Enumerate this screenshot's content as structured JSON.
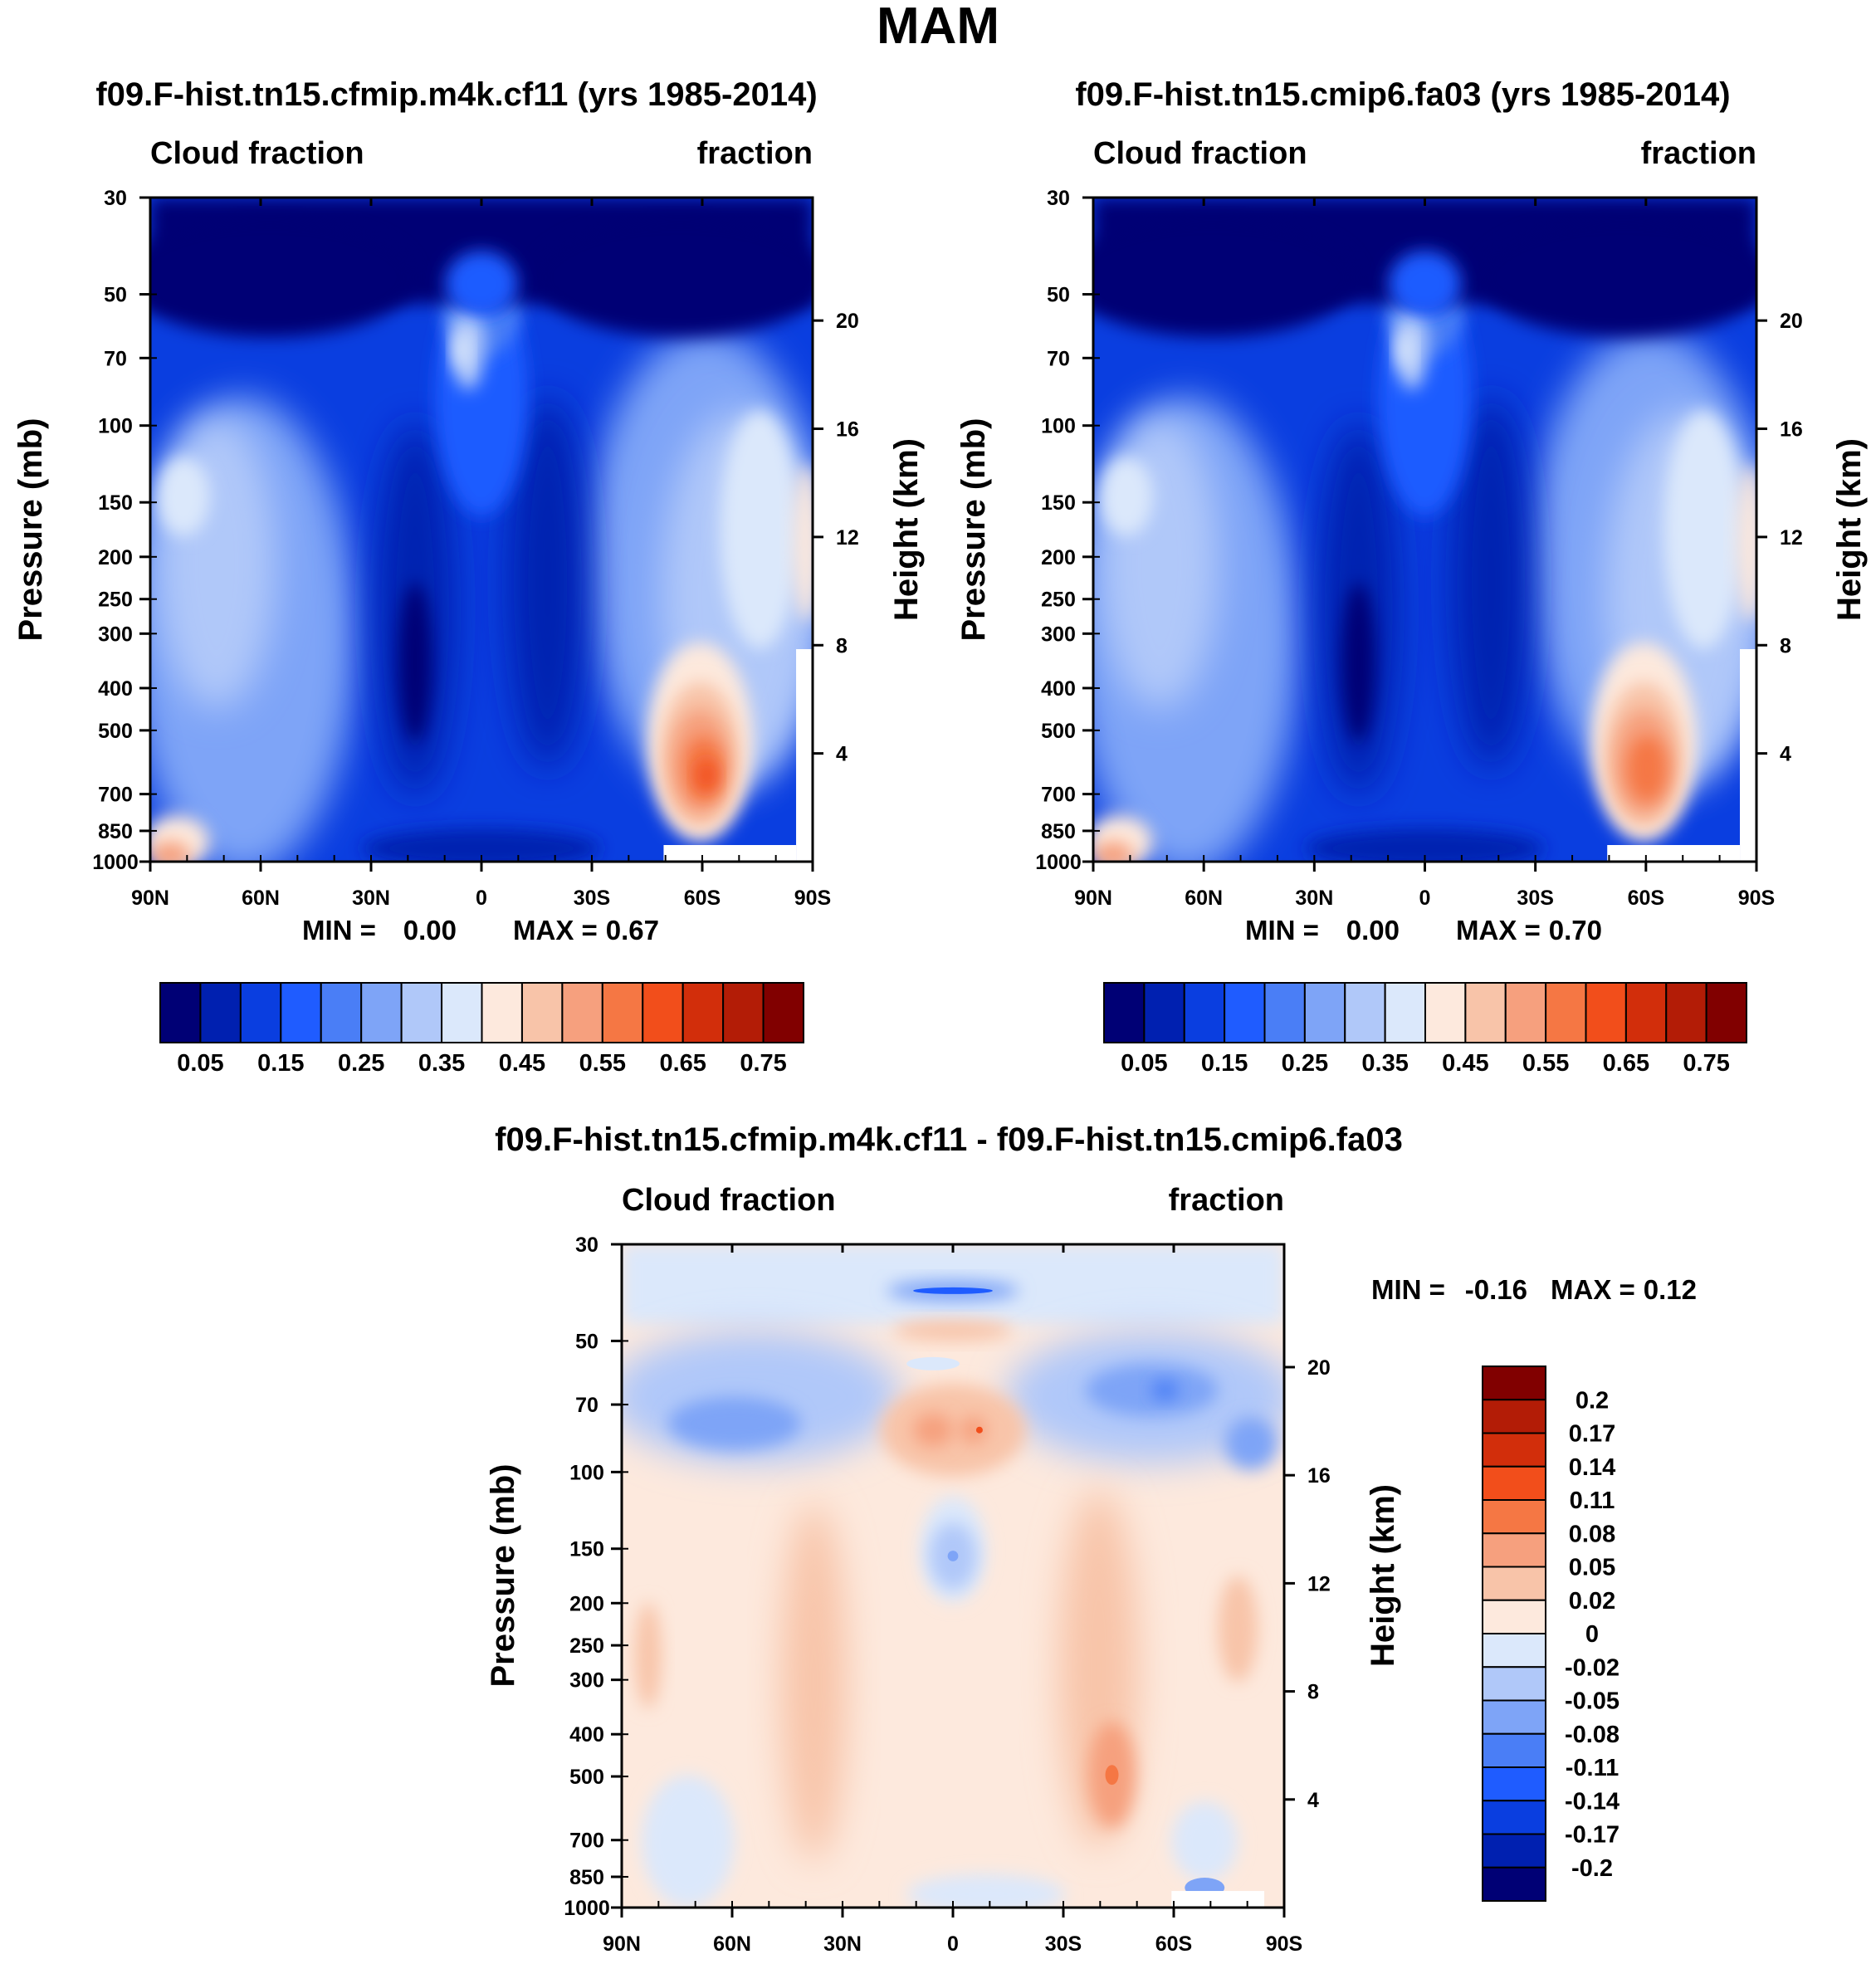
{
  "figure": {
    "title": "MAM"
  },
  "colors": {
    "model_scale": [
      "#000075",
      "#0020b0",
      "#0a3ee0",
      "#1f5cff",
      "#4a7ef6",
      "#7ea4f7",
      "#b0c8f9",
      "#dbe8fb",
      "#fde9dd",
      "#f8c4a9",
      "#f6a07e",
      "#f57744",
      "#f24e1b",
      "#d22e0b",
      "#b31c06",
      "#810000"
    ],
    "diff_scale": [
      "#000075",
      "#0020b0",
      "#0a3ee0",
      "#1f5cff",
      "#4a7ef6",
      "#7ea4f7",
      "#b0c8f9",
      "#dbe8fb",
      "#fde9dd",
      "#f8c4a9",
      "#f6a07e",
      "#f57744",
      "#f24e1b",
      "#d22e0b",
      "#b31c06",
      "#810000"
    ]
  },
  "chart_data": [
    {
      "type": "heatmap",
      "id": "panel-model-cf11",
      "title": "f09.F-hist.tn15.cfmip.m4k.cf11 (yrs 1985-2014)",
      "left_label": "Cloud fraction",
      "right_label": "fraction",
      "ylabel": "Pressure (mb)",
      "ylabel_right": "Height (km)",
      "xlabel": "",
      "x_ticks": [
        "90N",
        "60N",
        "30N",
        "0",
        "30S",
        "60S",
        "90S"
      ],
      "x_values": [
        90,
        60,
        30,
        0,
        -30,
        -60,
        -90
      ],
      "y_ticks": [
        "30",
        "50",
        "70",
        "100",
        "150",
        "200",
        "250",
        "300",
        "400",
        "500",
        "700",
        "850",
        "1000"
      ],
      "y_values": [
        30,
        50,
        70,
        100,
        150,
        200,
        250,
        300,
        400,
        500,
        700,
        850,
        1000
      ],
      "height_ticks": [
        "20",
        "16",
        "12",
        "8",
        "4"
      ],
      "height_values": [
        20,
        16,
        12,
        8,
        4
      ],
      "ylim": [
        1000,
        30
      ],
      "xlim": [
        90,
        -90
      ],
      "min_label": "MIN =",
      "min_value": "0.00",
      "max_label": "MAX =",
      "max_value": "0.67",
      "colorbar_labels": [
        "0.05",
        "0.15",
        "0.25",
        "0.35",
        "0.45",
        "0.55",
        "0.65",
        "0.75"
      ],
      "colorbar_levels": [
        0.05,
        0.1,
        0.15,
        0.2,
        0.25,
        0.3,
        0.35,
        0.4,
        0.45,
        0.5,
        0.55,
        0.6,
        0.65,
        0.7,
        0.75
      ]
    },
    {
      "type": "heatmap",
      "id": "panel-control-fa03",
      "title": "f09.F-hist.tn15.cmip6.fa03 (yrs 1985-2014)",
      "left_label": "Cloud fraction",
      "right_label": "fraction",
      "ylabel": "Pressure (mb)",
      "ylabel_right": "Height (km)",
      "xlabel": "",
      "x_ticks": [
        "90N",
        "60N",
        "30N",
        "0",
        "30S",
        "60S",
        "90S"
      ],
      "x_values": [
        90,
        60,
        30,
        0,
        -30,
        -60,
        -90
      ],
      "y_ticks": [
        "30",
        "50",
        "70",
        "100",
        "150",
        "200",
        "250",
        "300",
        "400",
        "500",
        "700",
        "850",
        "1000"
      ],
      "y_values": [
        30,
        50,
        70,
        100,
        150,
        200,
        250,
        300,
        400,
        500,
        700,
        850,
        1000
      ],
      "height_ticks": [
        "20",
        "16",
        "12",
        "8",
        "4"
      ],
      "height_values": [
        20,
        16,
        12,
        8,
        4
      ],
      "ylim": [
        1000,
        30
      ],
      "xlim": [
        90,
        -90
      ],
      "min_label": "MIN =",
      "min_value": "0.00",
      "max_label": "MAX =",
      "max_value": "0.70",
      "colorbar_labels": [
        "0.05",
        "0.15",
        "0.25",
        "0.35",
        "0.45",
        "0.55",
        "0.65",
        "0.75"
      ],
      "colorbar_levels": [
        0.05,
        0.1,
        0.15,
        0.2,
        0.25,
        0.3,
        0.35,
        0.4,
        0.45,
        0.5,
        0.55,
        0.6,
        0.65,
        0.7,
        0.75
      ]
    },
    {
      "type": "heatmap",
      "id": "panel-difference",
      "title": "f09.F-hist.tn15.cfmip.m4k.cf11 - f09.F-hist.tn15.cmip6.fa03",
      "left_label": "Cloud fraction",
      "right_label": "fraction",
      "ylabel": "Pressure (mb)",
      "ylabel_right": "Height (km)",
      "xlabel": "",
      "x_ticks": [
        "90N",
        "60N",
        "30N",
        "0",
        "30S",
        "60S",
        "90S"
      ],
      "x_values": [
        90,
        60,
        30,
        0,
        -30,
        -60,
        -90
      ],
      "y_ticks": [
        "30",
        "50",
        "70",
        "100",
        "150",
        "200",
        "250",
        "300",
        "400",
        "500",
        "700",
        "850",
        "1000"
      ],
      "y_values": [
        30,
        50,
        70,
        100,
        150,
        200,
        250,
        300,
        400,
        500,
        700,
        850,
        1000
      ],
      "height_ticks": [
        "20",
        "16",
        "12",
        "8",
        "4"
      ],
      "height_values": [
        20,
        16,
        12,
        8,
        4
      ],
      "ylim": [
        1000,
        30
      ],
      "xlim": [
        90,
        -90
      ],
      "min_label": "MIN =",
      "min_value": "-0.16",
      "max_label": "MAX =",
      "max_value": "0.12",
      "colorbar_labels": [
        "0.2",
        "0.17",
        "0.14",
        "0.11",
        "0.08",
        "0.05",
        "0.02",
        "0",
        "-0.02",
        "-0.05",
        "-0.08",
        "-0.11",
        "-0.14",
        "-0.17",
        "-0.2"
      ],
      "colorbar_levels": [
        0.2,
        0.17,
        0.14,
        0.11,
        0.08,
        0.05,
        0.02,
        0,
        -0.02,
        -0.05,
        -0.08,
        -0.11,
        -0.14,
        -0.17,
        -0.2
      ]
    }
  ]
}
